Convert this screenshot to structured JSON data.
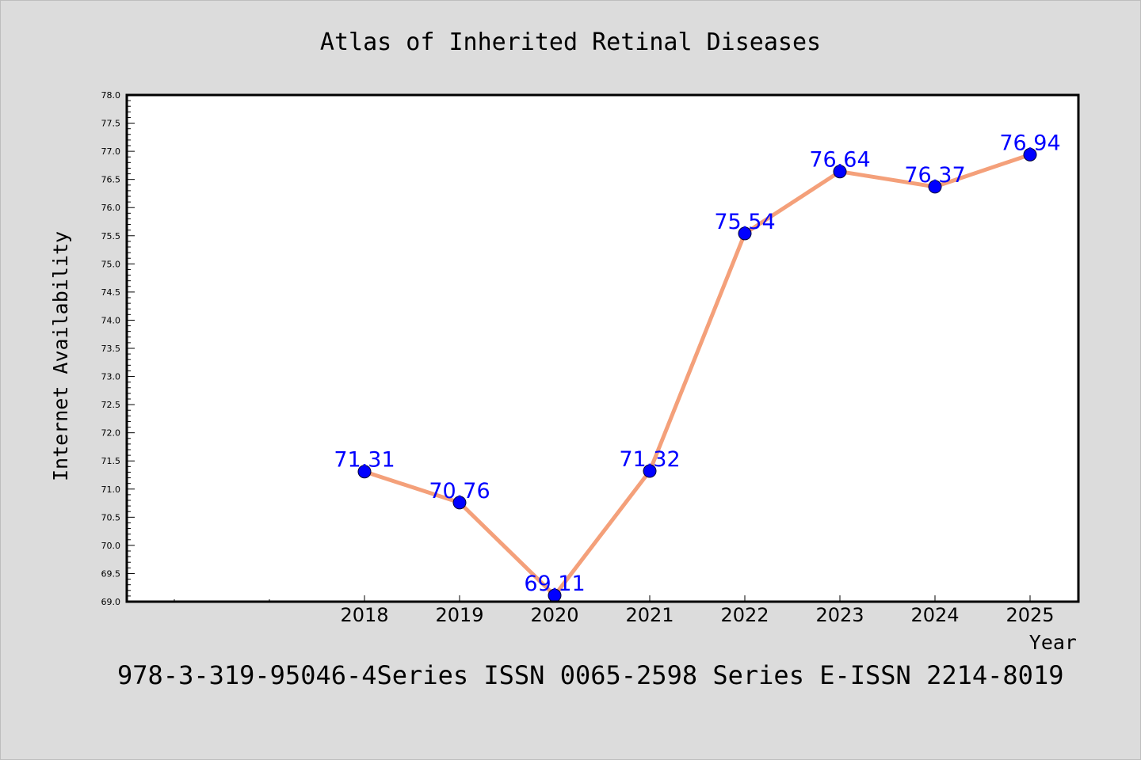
{
  "chart_data": {
    "type": "line",
    "title": "Atlas of Inherited Retinal Diseases",
    "xlabel": "Year",
    "ylabel": "Internet Availability",
    "categories": [
      "2018",
      "2019",
      "2020",
      "2021",
      "2022",
      "2023",
      "2024",
      "2025"
    ],
    "series": [
      {
        "values": [
          71.31,
          70.76,
          69.11,
          71.32,
          75.54,
          76.64,
          76.37,
          76.94
        ],
        "labels": [
          "71.31",
          "70.76",
          "69.11",
          "71.32",
          "75.54",
          "76.64",
          "76.37",
          "76.94"
        ]
      }
    ],
    "ylim": [
      69.0,
      78.0
    ],
    "yticks": [
      "69.0",
      "69.5",
      "70.0",
      "70.5",
      "71.0",
      "71.5",
      "72.0",
      "72.5",
      "73.0",
      "73.5",
      "74.0",
      "74.5",
      "75.0",
      "75.5",
      "76.0",
      "76.5",
      "77.0",
      "77.5",
      "78.0"
    ],
    "grid": false,
    "line_color": "#f4a07a",
    "marker_color": "#0000ff",
    "label_color": "#0000ff",
    "plot_background": "#ffffff",
    "page_background": "#dcdcdc"
  },
  "footer": {
    "text": "978-3-319-95046-4Series ISSN 0065-2598 Series E-ISSN 2214-8019"
  }
}
